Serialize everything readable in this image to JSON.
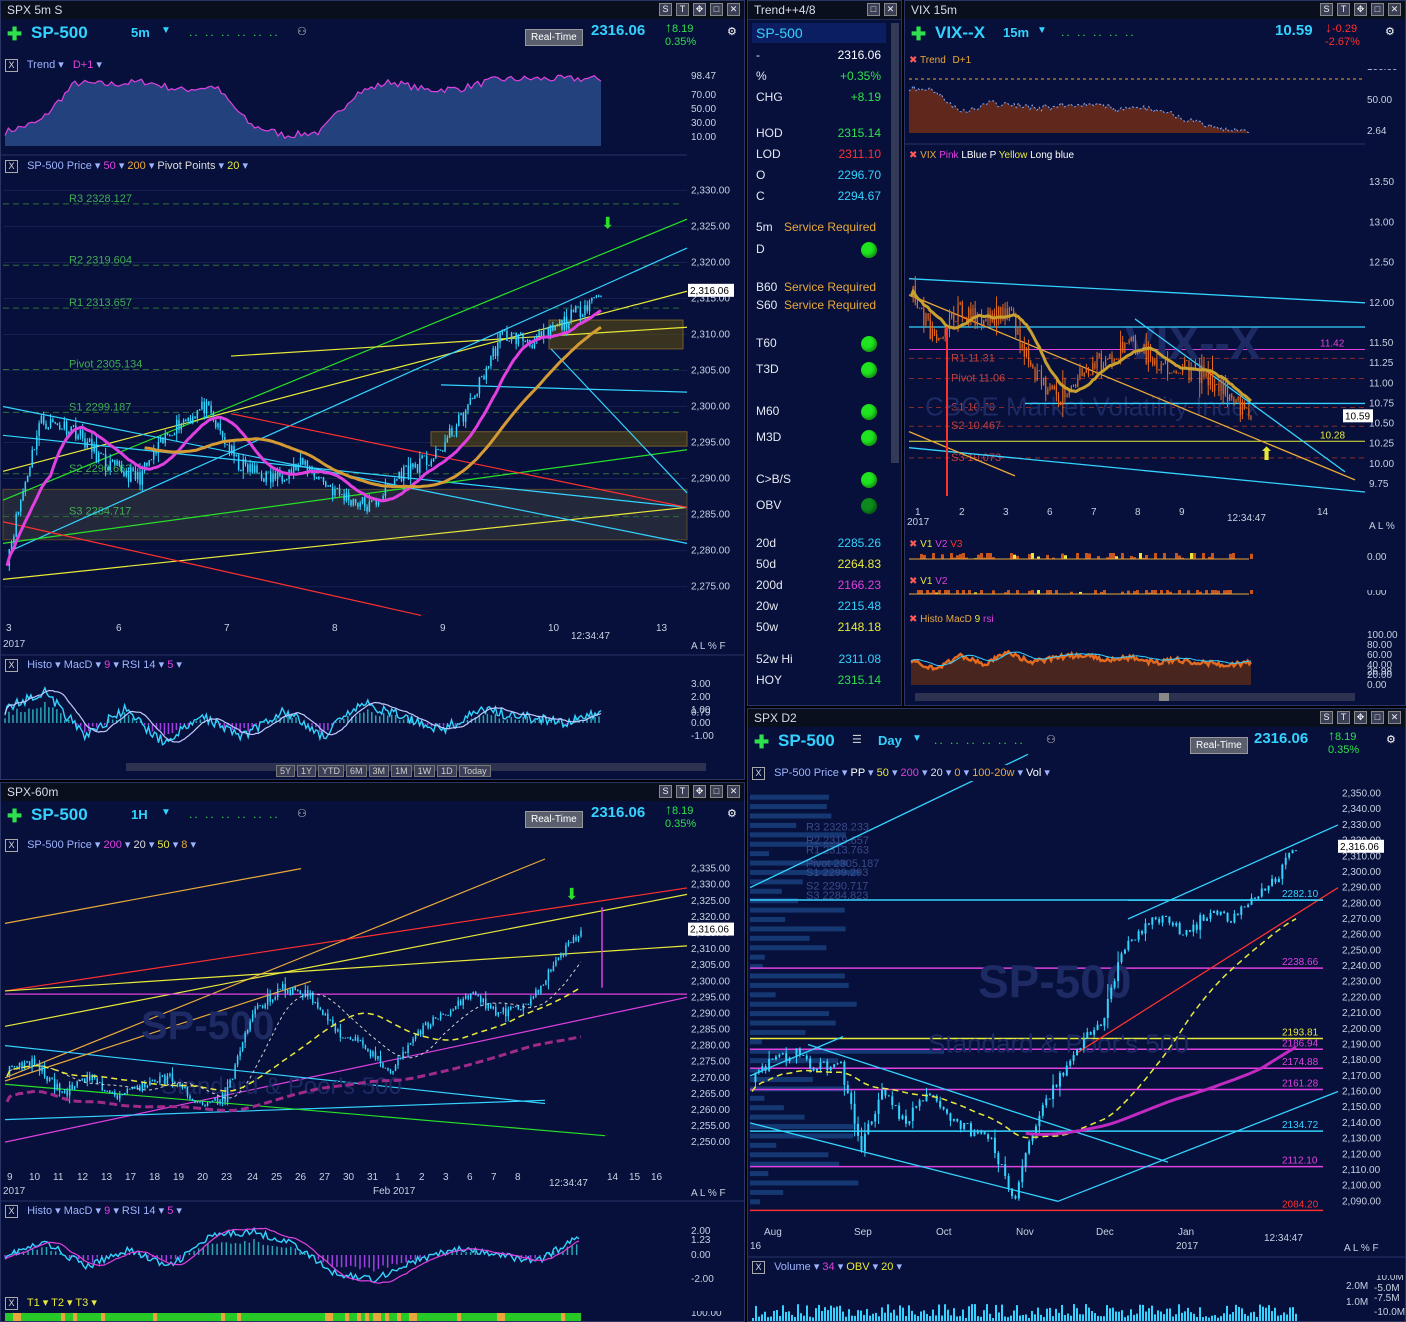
{
  "panes": {
    "spx5m": {
      "title": "SPX 5m S",
      "symbol": "SP-500",
      "timeframe": "5m",
      "realtime": "Real-Time",
      "price": "2316.06",
      "change": "8.19",
      "pct": "0.35%",
      "trend_label": "Trend",
      "trend_param": "D+1",
      "trend_ticks": [
        "98.47",
        "70.00",
        "50.00",
        "30.00",
        "10.00"
      ],
      "price_legend": [
        "SP-500 Price",
        "50",
        "200",
        "Pivot Points",
        "20"
      ],
      "pivots": [
        {
          "label": "R3 2328.127",
          "value": 2328.127
        },
        {
          "label": "R2 2319.604",
          "value": 2319.604
        },
        {
          "label": "R1 2313.657",
          "value": 2313.657
        },
        {
          "label": "Pivot 2305.134",
          "value": 2305.134
        },
        {
          "label": "S1 2299.187",
          "value": 2299.187
        },
        {
          "label": "S2 2290.663",
          "value": 2290.663
        },
        {
          "label": "S3 2284.717",
          "value": 2284.717
        }
      ],
      "y_ticks": [
        "2,330.00",
        "2,325.00",
        "2,320.00",
        "2,315.00",
        "2,310.00",
        "2,305.00",
        "2,300.00",
        "2,295.00",
        "2,290.00",
        "2,285.00",
        "2,280.00",
        "2,275.00"
      ],
      "last_price_tag": "2,316.06",
      "x_ticks": [
        "3",
        "6",
        "7",
        "8",
        "9",
        "10",
        "13"
      ],
      "year": "2017",
      "time": "12:34:47",
      "scale_opts": "A L % F",
      "osc_legend": [
        "Histo",
        "MacD",
        "9",
        "RSI 14",
        "5"
      ],
      "osc_ticks": [
        "3.00",
        "2.00",
        "1.00",
        "0.79",
        "0.00",
        "-1.00"
      ],
      "range_btns": [
        "5Y",
        "1Y",
        "YTD",
        "6M",
        "3M",
        "1M",
        "1W",
        "1D",
        "Today"
      ]
    },
    "watchlist": {
      "title": "Trend++4/8",
      "symbol": "SP-500",
      "rows": [
        {
          "label": "-",
          "value": "2316.06",
          "color": "#ffffff"
        },
        {
          "label": "%",
          "value": "+0.35%",
          "color": "#2ee04e"
        },
        {
          "label": "CHG",
          "value": "+8.19",
          "color": "#2ee04e"
        },
        {
          "label": "HOD",
          "value": "2315.14",
          "color": "#2ee04e"
        },
        {
          "label": "LOD",
          "value": "2311.10",
          "color": "#ff3030"
        },
        {
          "label": "O",
          "value": "2296.70",
          "color": "#34d3ff"
        },
        {
          "label": "C",
          "value": "2294.67",
          "color": "#34d3ff"
        }
      ],
      "signals": [
        {
          "label": "5m",
          "text": "Service Required"
        },
        {
          "label": "D",
          "dot": true
        },
        {
          "label": "B60",
          "text": "Service Required"
        },
        {
          "label": "S60",
          "text": "Service Required"
        },
        {
          "label": "T60",
          "dot": true
        },
        {
          "label": "T3D",
          "dot": true
        },
        {
          "label": "M60",
          "dot": true
        },
        {
          "label": "M3D",
          "dot": true
        },
        {
          "label": "C>B/S",
          "dot": true
        },
        {
          "label": "OBV",
          "dot": true
        }
      ],
      "stats": [
        {
          "label": "20d",
          "value": "2285.26",
          "color": "#34d3ff"
        },
        {
          "label": "50d",
          "value": "2264.83",
          "color": "#e9e93a"
        },
        {
          "label": "200d",
          "value": "2166.23",
          "color": "#e040e0"
        },
        {
          "label": "20w",
          "value": "2215.48",
          "color": "#34d3ff"
        },
        {
          "label": "50w",
          "value": "2148.18",
          "color": "#e9e93a"
        },
        {
          "label": "52w Hi",
          "value": "2311.08",
          "color": "#34d3ff"
        },
        {
          "label": "HOY",
          "value": "2315.14",
          "color": "#2ee04e"
        }
      ]
    },
    "vix": {
      "title": "VIX 15m",
      "symbol": "VIX--X",
      "timeframe": "15m",
      "price": "10.59",
      "change": "-0.29",
      "pct": "-2.67%",
      "trend_label": "Trend",
      "trend_param": "D+1",
      "trend_ticks": [
        "100.00",
        "50.00",
        "2.64"
      ],
      "legend": [
        "VIX",
        "Pink",
        "LBlue",
        "P",
        "Yellow",
        "Long blue"
      ],
      "pivots": [
        {
          "label": "R1 11.31",
          "value": 11.31
        },
        {
          "label": "Pivot 11.06",
          "value": 11.06
        },
        {
          "label": "S1 10.70",
          "value": 10.7
        },
        {
          "label": "S2 10.467",
          "value": 10.467
        },
        {
          "label": "S3 10.073",
          "value": 10.073
        }
      ],
      "levels": [
        {
          "label": "11.42",
          "value": 11.42
        },
        {
          "label": "10.28",
          "value": 10.28
        }
      ],
      "y_ticks": [
        "13.50",
        "13.00",
        "12.50",
        "12.00",
        "11.50",
        "11.25",
        "11.00",
        "10.75",
        "10.50",
        "10.25",
        "10.00",
        "9.75"
      ],
      "last_price_tag": "10.59",
      "x_ticks": [
        "1",
        "2",
        "3",
        "6",
        "7",
        "8",
        "9",
        "14"
      ],
      "year": "2017",
      "time": "12:34:47",
      "scale_opts": "A L %",
      "v_legend1": [
        "V1",
        "V2",
        "V3"
      ],
      "v_legend2": [
        "V1",
        "V2"
      ],
      "v_ticks": [
        "100.00",
        "0.00"
      ],
      "osc_legend": [
        "Histo",
        "MacD",
        "9",
        "rsi"
      ],
      "osc_ticks": [
        "100.00",
        "80.00",
        "60.00",
        "40.00",
        "26.98",
        "20.00",
        "0.00"
      ],
      "watermark1": "VIX--X",
      "watermark2": "CBOE Market Volatility Index"
    },
    "spx60": {
      "title": "SPX-60m",
      "symbol": "SP-500",
      "timeframe": "1H",
      "realtime": "Real-Time",
      "price": "2316.06",
      "change": "8.19",
      "pct": "0.35%",
      "price_legend": [
        "SP-500 Price",
        "200",
        "20",
        "50",
        "8"
      ],
      "y_ticks": [
        "2,335.00",
        "2,330.00",
        "2,325.00",
        "2,320.00",
        "2,315.00",
        "2,310.00",
        "2,305.00",
        "2,300.00",
        "2,295.00",
        "2,290.00",
        "2,285.00",
        "2,280.00",
        "2,275.00",
        "2,270.00",
        "2,265.00",
        "2,260.00",
        "2,255.00",
        "2,250.00"
      ],
      "last_price_tag": "2,316.06",
      "x_ticks": [
        "9",
        "10",
        "11",
        "12",
        "13",
        "17",
        "18",
        "19",
        "20",
        "23",
        "24",
        "25",
        "26",
        "27",
        "30",
        "31",
        "1",
        "2",
        "3",
        "6",
        "7",
        "8",
        "14",
        "15",
        "16"
      ],
      "year": "2017",
      "month_label": "Feb 2017",
      "time": "12:34:47",
      "scale_opts": "A L % F",
      "osc_legend": [
        "Histo",
        "MacD",
        "9",
        "RSI 14",
        "5"
      ],
      "osc_ticks": [
        "2.00",
        "1.23",
        "0.00",
        "-2.00"
      ],
      "t_legend": [
        "T1",
        "T2",
        "T3"
      ],
      "t_tick": "100.00",
      "watermark1": "SP-500",
      "watermark2": "Standard & Poor's 500"
    },
    "spxd": {
      "title": "SPX D2",
      "symbol": "SP-500",
      "timeframe": "Day",
      "realtime": "Real-Time",
      "price": "2316.06",
      "change": "8.19",
      "pct": "0.35%",
      "price_legend": [
        "SP-500 Price",
        "PP",
        "50",
        "200",
        "20",
        "0",
        "100-20w",
        "Vol"
      ],
      "pivots": [
        {
          "label": "R3 2328.233",
          "value": 2328.233
        },
        {
          "label": "R2 2319.657",
          "value": 2319.657
        },
        {
          "label": "R1 2313.763",
          "value": 2313.763
        },
        {
          "label": "Pivot 2305.187",
          "value": 2305.187
        },
        {
          "label": "S1 2299.293",
          "value": 2299.293
        },
        {
          "label": "S2 2290.717",
          "value": 2290.717
        },
        {
          "label": "S3 2284.823",
          "value": 2284.823
        }
      ],
      "levels": [
        {
          "label": "2282.10",
          "value": 2282.1,
          "color": "#34d3ff"
        },
        {
          "label": "2238.66",
          "value": 2238.66,
          "color": "#e040e0"
        },
        {
          "label": "2193.81",
          "value": 2193.81,
          "color": "#e9e93a"
        },
        {
          "label": "2186.94",
          "value": 2186.94,
          "color": "#e040e0"
        },
        {
          "label": "2174.88",
          "value": 2174.88,
          "color": "#e040e0"
        },
        {
          "label": "2161.28",
          "value": 2161.28,
          "color": "#e040e0"
        },
        {
          "label": "2134.72",
          "value": 2134.72,
          "color": "#34d3ff"
        },
        {
          "label": "2112.10",
          "value": 2112.1,
          "color": "#e040e0"
        },
        {
          "label": "2084.20",
          "value": 2084.2,
          "color": "#ff3030"
        }
      ],
      "y_ticks": [
        "2,350.00",
        "2,340.00",
        "2,330.00",
        "2,320.00",
        "2,310.00",
        "2,300.00",
        "2,290.00",
        "2,280.00",
        "2,270.00",
        "2,260.00",
        "2,250.00",
        "2,240.00",
        "2,230.00",
        "2,220.00",
        "2,210.00",
        "2,200.00",
        "2,190.00",
        "2,180.00",
        "2,170.00",
        "2,160.00",
        "2,150.00",
        "2,140.00",
        "2,130.00",
        "2,120.00",
        "2,110.00",
        "2,100.00",
        "2,090.00"
      ],
      "last_price_tag": "2,316.06",
      "x_ticks": [
        "Aug",
        "Sep",
        "Oct",
        "Nov",
        "Dec",
        "Jan"
      ],
      "year_left": "16",
      "year": "2017",
      "time": "12:34:47",
      "scale_opts": "A L % F",
      "vol_legend": [
        "Volume",
        "34",
        "OBV",
        "20"
      ],
      "vol_ticks": [
        "10.0M",
        "2.0M",
        "-5.0M",
        "-7.5M",
        "1.0M",
        "-10.0M"
      ],
      "watermark1": "SP-500",
      "watermark2": "Standard & Poor's 500"
    }
  },
  "chart_data": [
    {
      "type": "line",
      "title": "SPX 5m S",
      "series": [
        {
          "name": "SP-500 Price",
          "x": [
            "3",
            "6",
            "7",
            "8",
            "9",
            "10"
          ],
          "values": [
            2280,
            2296,
            2297,
            2287,
            2294,
            2316.06
          ]
        }
      ],
      "xlabel": "",
      "ylabel": "",
      "ylim": [
        2273,
        2332
      ]
    },
    {
      "type": "line",
      "title": "VIX 15m",
      "series": [
        {
          "name": "VIX",
          "x": [
            "1",
            "2",
            "3",
            "6",
            "7",
            "8",
            "9"
          ],
          "values": [
            11.9,
            11.85,
            11.5,
            10.8,
            11.3,
            11.45,
            10.59
          ]
        }
      ],
      "xlabel": "",
      "ylabel": "",
      "ylim": [
        9.6,
        13.7
      ]
    },
    {
      "type": "line",
      "title": "SPX-60m",
      "series": [
        {
          "name": "SP-500 Price",
          "x": [
            "9",
            "13",
            "19",
            "23",
            "26",
            "31",
            "6",
            "8"
          ],
          "values": [
            2272,
            2264,
            2266,
            2262,
            2298,
            2273,
            2295,
            2316.06
          ]
        }
      ],
      "xlabel": "",
      "ylabel": "",
      "ylim": [
        2246,
        2338
      ]
    },
    {
      "type": "line",
      "title": "SPX D2",
      "series": [
        {
          "name": "SP-500 Price",
          "x": [
            "Aug",
            "Sep",
            "Oct",
            "Nov",
            "Dec",
            "Jan"
          ],
          "values": [
            2170,
            2180,
            2150,
            2090,
            2250,
            2275
          ]
        }
      ],
      "xlabel": "",
      "ylabel": "",
      "ylim": [
        2080,
        2358
      ]
    }
  ]
}
